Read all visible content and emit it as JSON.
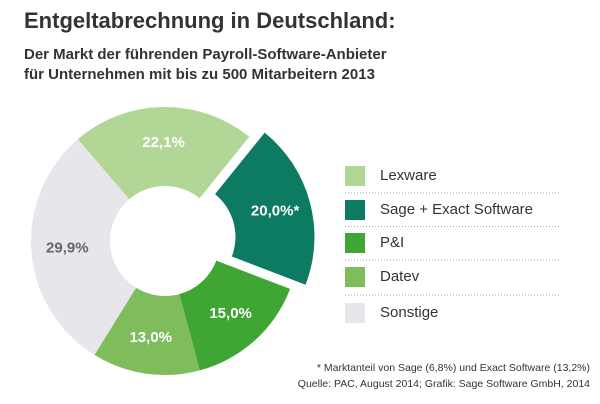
{
  "chart_data": {
    "type": "donut",
    "title": "Entgeltabrechnung in Deutschland:",
    "subtitle": [
      "Der Markt der führenden Payroll-Software-Anbieter",
      "für Unternehmen mit bis zu 500 Mitarbeitern 2013"
    ],
    "categories": [
      "Lexware",
      "Sage + Exact Software",
      "P&I",
      "Datev",
      "Sonstige"
    ],
    "values": [
      22.1,
      20.0,
      15.0,
      13.0,
      29.9
    ],
    "value_labels": [
      "22,1%",
      "20,0%*",
      "15,0%",
      "13,0%",
      "29,9%"
    ],
    "colors": [
      "#b2d696",
      "#0d7a62",
      "#40a633",
      "#7ebc5c",
      "#e7e7eb"
    ],
    "explode": [
      false,
      true,
      false,
      false,
      false
    ],
    "footnote": "* Marktanteil von Sage (6,8%) und Exact Software (13,2%)",
    "source": "Quelle: PAC, August 2014; Grafik: Sage Software GmbH, 2014"
  }
}
